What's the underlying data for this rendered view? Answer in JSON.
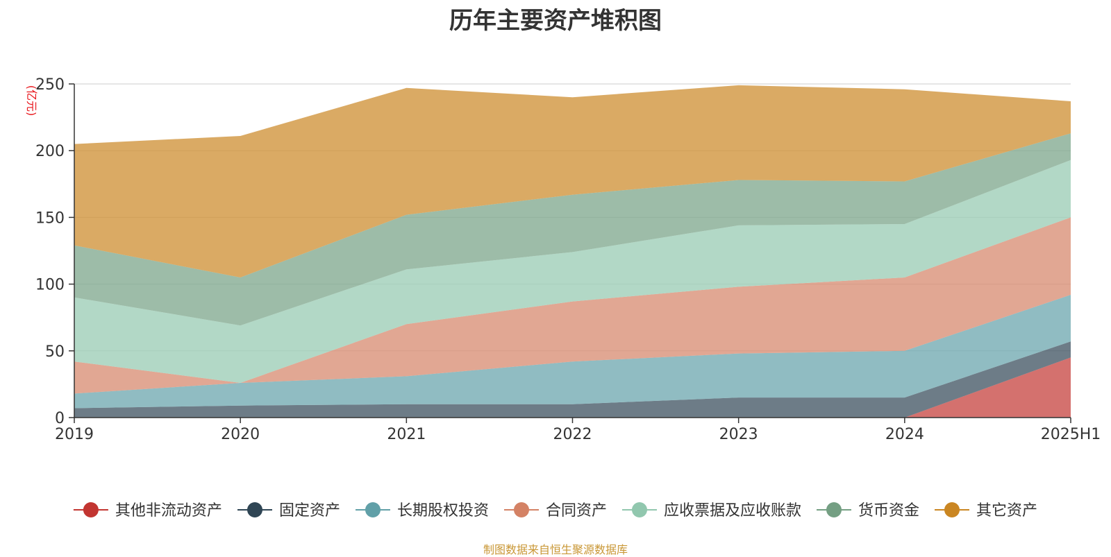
{
  "chart_data": {
    "type": "area",
    "stacked": true,
    "title": "历年主要资产堆积图",
    "unit_label": "(亿元)",
    "categories": [
      "2019",
      "2020",
      "2021",
      "2022",
      "2023",
      "2024",
      "2025H1"
    ],
    "ylim": [
      0,
      250
    ],
    "yticks": [
      0,
      50,
      100,
      150,
      200,
      250
    ],
    "grid": true,
    "legend_position": "bottom",
    "series": [
      {
        "name": "其他非流动资产",
        "color": "#c23531",
        "marker": "#c23531",
        "values": [
          0,
          0,
          0,
          0,
          0,
          0,
          45
        ]
      },
      {
        "name": "固定资产",
        "color": "#2f4554",
        "marker": "#2f4554",
        "values": [
          7,
          9,
          10,
          10,
          15,
          15,
          12
        ]
      },
      {
        "name": "长期股权投资",
        "color": "#61a0a8",
        "marker": "#61a0a8",
        "values": [
          11,
          17,
          21,
          32,
          33,
          35,
          35
        ]
      },
      {
        "name": "合同资产",
        "color": "#d48265",
        "marker": "#d48265",
        "values": [
          24,
          0,
          39,
          45,
          50,
          55,
          58
        ]
      },
      {
        "name": "应收票据及应收账款",
        "color": "#91c7ae",
        "marker": "#91c7ae",
        "values": [
          48,
          43,
          41,
          37,
          46,
          40,
          43
        ]
      },
      {
        "name": "货币资金",
        "color": "#749f83",
        "marker": "#749f83",
        "values": [
          39,
          36,
          41,
          43,
          34,
          32,
          20
        ]
      },
      {
        "name": "其它资产",
        "color": "#ca8622",
        "marker": "#ca8622",
        "values": [
          76,
          106,
          95,
          73,
          71,
          69,
          24
        ]
      }
    ]
  },
  "footer": {
    "source": "制图数据来自恒生聚源数据库"
  }
}
